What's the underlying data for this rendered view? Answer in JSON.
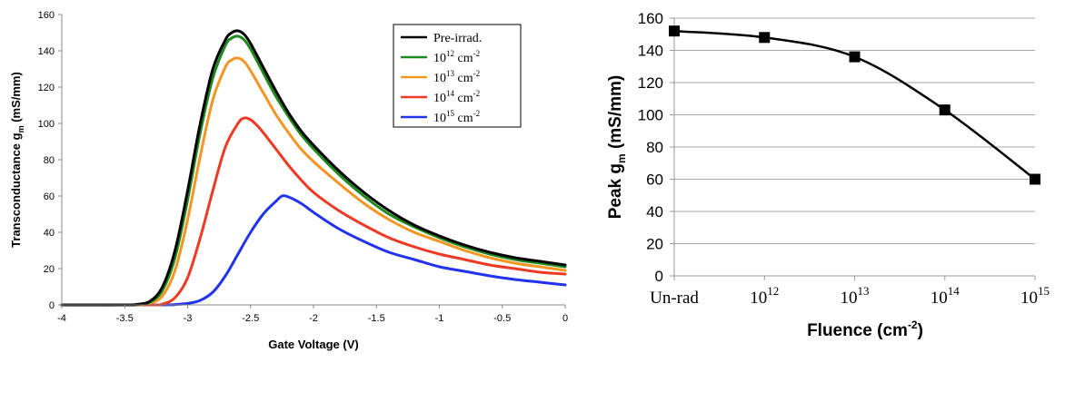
{
  "chart_data": [
    {
      "type": "line",
      "title": "",
      "xlabel": "Gate Voltage (V)",
      "ylabel": {
        "main": "Transconductance g",
        "sub": "m",
        "tail": " (mS/mm)"
      },
      "xlim": [
        -4,
        0
      ],
      "ylim": [
        0,
        160
      ],
      "x_ticks": [
        "-4",
        "-3.5",
        "-3",
        "-2.5",
        "-2",
        "-1.5",
        "-1",
        "-0.5",
        "0"
      ],
      "y_ticks": [
        "0",
        "20",
        "40",
        "60",
        "80",
        "100",
        "120",
        "140",
        "160"
      ],
      "grid": false,
      "legend_position": "top-right",
      "series": [
        {
          "name": "Pre-irrad.",
          "legend": {
            "base": "Pre-irrad.",
            "sup": "",
            "unit": "",
            "unit_sup": ""
          },
          "color": "#000000",
          "x": [
            -4.0,
            -3.5,
            -3.4,
            -3.3,
            -3.2,
            -3.1,
            -3.0,
            -2.9,
            -2.8,
            -2.7,
            -2.65,
            -2.6,
            -2.55,
            -2.5,
            -2.4,
            -2.3,
            -2.2,
            -2.1,
            -2.0,
            -1.8,
            -1.6,
            -1.4,
            -1.2,
            -1.0,
            -0.8,
            -0.6,
            -0.4,
            -0.2,
            0.0
          ],
          "y": [
            0.0,
            0.0,
            0.3,
            2.0,
            10,
            30,
            63,
            100,
            130,
            146,
            150,
            151,
            149,
            144,
            131,
            118,
            106,
            96,
            88,
            74,
            62,
            52,
            44,
            38,
            33,
            29,
            26,
            24,
            22
          ]
        },
        {
          "name": "10 12 cm -2",
          "legend": {
            "base": "10",
            "sup": "12",
            "unit": " cm",
            "unit_sup": "-2"
          },
          "color": "#1e8a1e",
          "x": [
            -4.0,
            -3.5,
            -3.4,
            -3.3,
            -3.2,
            -3.1,
            -3.0,
            -2.9,
            -2.8,
            -2.7,
            -2.65,
            -2.6,
            -2.55,
            -2.5,
            -2.4,
            -2.3,
            -2.2,
            -2.1,
            -2.0,
            -1.8,
            -1.6,
            -1.4,
            -1.2,
            -1.0,
            -0.8,
            -0.6,
            -0.4,
            -0.2,
            0.0
          ],
          "y": [
            0.0,
            0.0,
            0.2,
            1.5,
            8,
            26,
            58,
            95,
            125,
            143,
            147,
            148,
            146,
            141,
            128,
            115,
            104,
            94,
            86,
            72,
            60,
            50,
            43,
            37,
            32,
            28,
            25,
            23,
            21
          ]
        },
        {
          "name": "10 13 cm -2",
          "legend": {
            "base": "10",
            "sup": "13",
            "unit": " cm",
            "unit_sup": "-2"
          },
          "color": "#f39522",
          "x": [
            -4.0,
            -3.5,
            -3.4,
            -3.3,
            -3.2,
            -3.1,
            -3.0,
            -2.9,
            -2.8,
            -2.7,
            -2.65,
            -2.6,
            -2.55,
            -2.5,
            -2.4,
            -2.3,
            -2.2,
            -2.1,
            -2.0,
            -1.8,
            -1.6,
            -1.4,
            -1.2,
            -1.0,
            -0.8,
            -0.6,
            -0.4,
            -0.2,
            0.0
          ],
          "y": [
            0.0,
            0.0,
            0.1,
            1.0,
            5,
            19,
            47,
            82,
            113,
            131,
            135,
            136,
            134,
            129,
            117,
            105,
            95,
            86,
            79,
            67,
            56,
            47,
            40,
            35,
            30,
            26,
            23,
            21,
            19
          ]
        },
        {
          "name": "10 14 cm -2",
          "legend": {
            "base": "10",
            "sup": "14",
            "unit": " cm",
            "unit_sup": "-2"
          },
          "color": "#ee3a24",
          "x": [
            -4.0,
            -3.3,
            -3.2,
            -3.1,
            -3.0,
            -2.9,
            -2.8,
            -2.7,
            -2.6,
            -2.55,
            -2.5,
            -2.45,
            -2.4,
            -2.3,
            -2.2,
            -2.1,
            -2.0,
            -1.8,
            -1.6,
            -1.4,
            -1.2,
            -1.0,
            -0.8,
            -0.6,
            -0.4,
            -0.2,
            0.0
          ],
          "y": [
            0.0,
            0.0,
            0.5,
            4,
            15,
            37,
            63,
            87,
            100,
            103,
            102,
            99,
            95,
            86,
            77,
            69,
            62,
            52,
            44,
            37,
            32,
            28,
            25,
            22,
            20,
            18,
            17
          ]
        },
        {
          "name": "10 15 cm -2",
          "legend": {
            "base": "10",
            "sup": "15",
            "unit": " cm",
            "unit_sup": "-2"
          },
          "color": "#2233ee",
          "x": [
            -4.0,
            -3.2,
            -3.1,
            -3.0,
            -2.9,
            -2.8,
            -2.7,
            -2.6,
            -2.5,
            -2.4,
            -2.3,
            -2.25,
            -2.2,
            -2.1,
            -2.0,
            -1.8,
            -1.6,
            -1.4,
            -1.2,
            -1.0,
            -0.8,
            -0.6,
            -0.4,
            -0.2,
            0.0
          ],
          "y": [
            0.0,
            0.0,
            0.2,
            0.8,
            2.5,
            7,
            16,
            28,
            40,
            50,
            57,
            60,
            59.5,
            56,
            51,
            42,
            35,
            29,
            25,
            21,
            18.5,
            16,
            14,
            12.5,
            11
          ]
        }
      ]
    },
    {
      "type": "line",
      "title": "",
      "xlabel": {
        "main": "Fluence (cm",
        "sup": "-2",
        "tail": ")"
      },
      "ylabel": {
        "main": "Peak g",
        "sub": "m",
        "tail": " (mS/mm)"
      },
      "ylim": [
        0,
        160
      ],
      "y_ticks": [
        "0",
        "20",
        "40",
        "60",
        "80",
        "100",
        "120",
        "140",
        "160"
      ],
      "grid": true,
      "markers": "square",
      "categories": [
        {
          "base": "Un-rad",
          "sup": ""
        },
        {
          "base": "10",
          "sup": "12"
        },
        {
          "base": "10",
          "sup": "13"
        },
        {
          "base": "10",
          "sup": "14"
        },
        {
          "base": "10",
          "sup": "15"
        }
      ],
      "series": [
        {
          "name": "",
          "color": "#000000",
          "values": [
            152,
            148,
            136,
            103,
            60
          ]
        }
      ]
    }
  ]
}
